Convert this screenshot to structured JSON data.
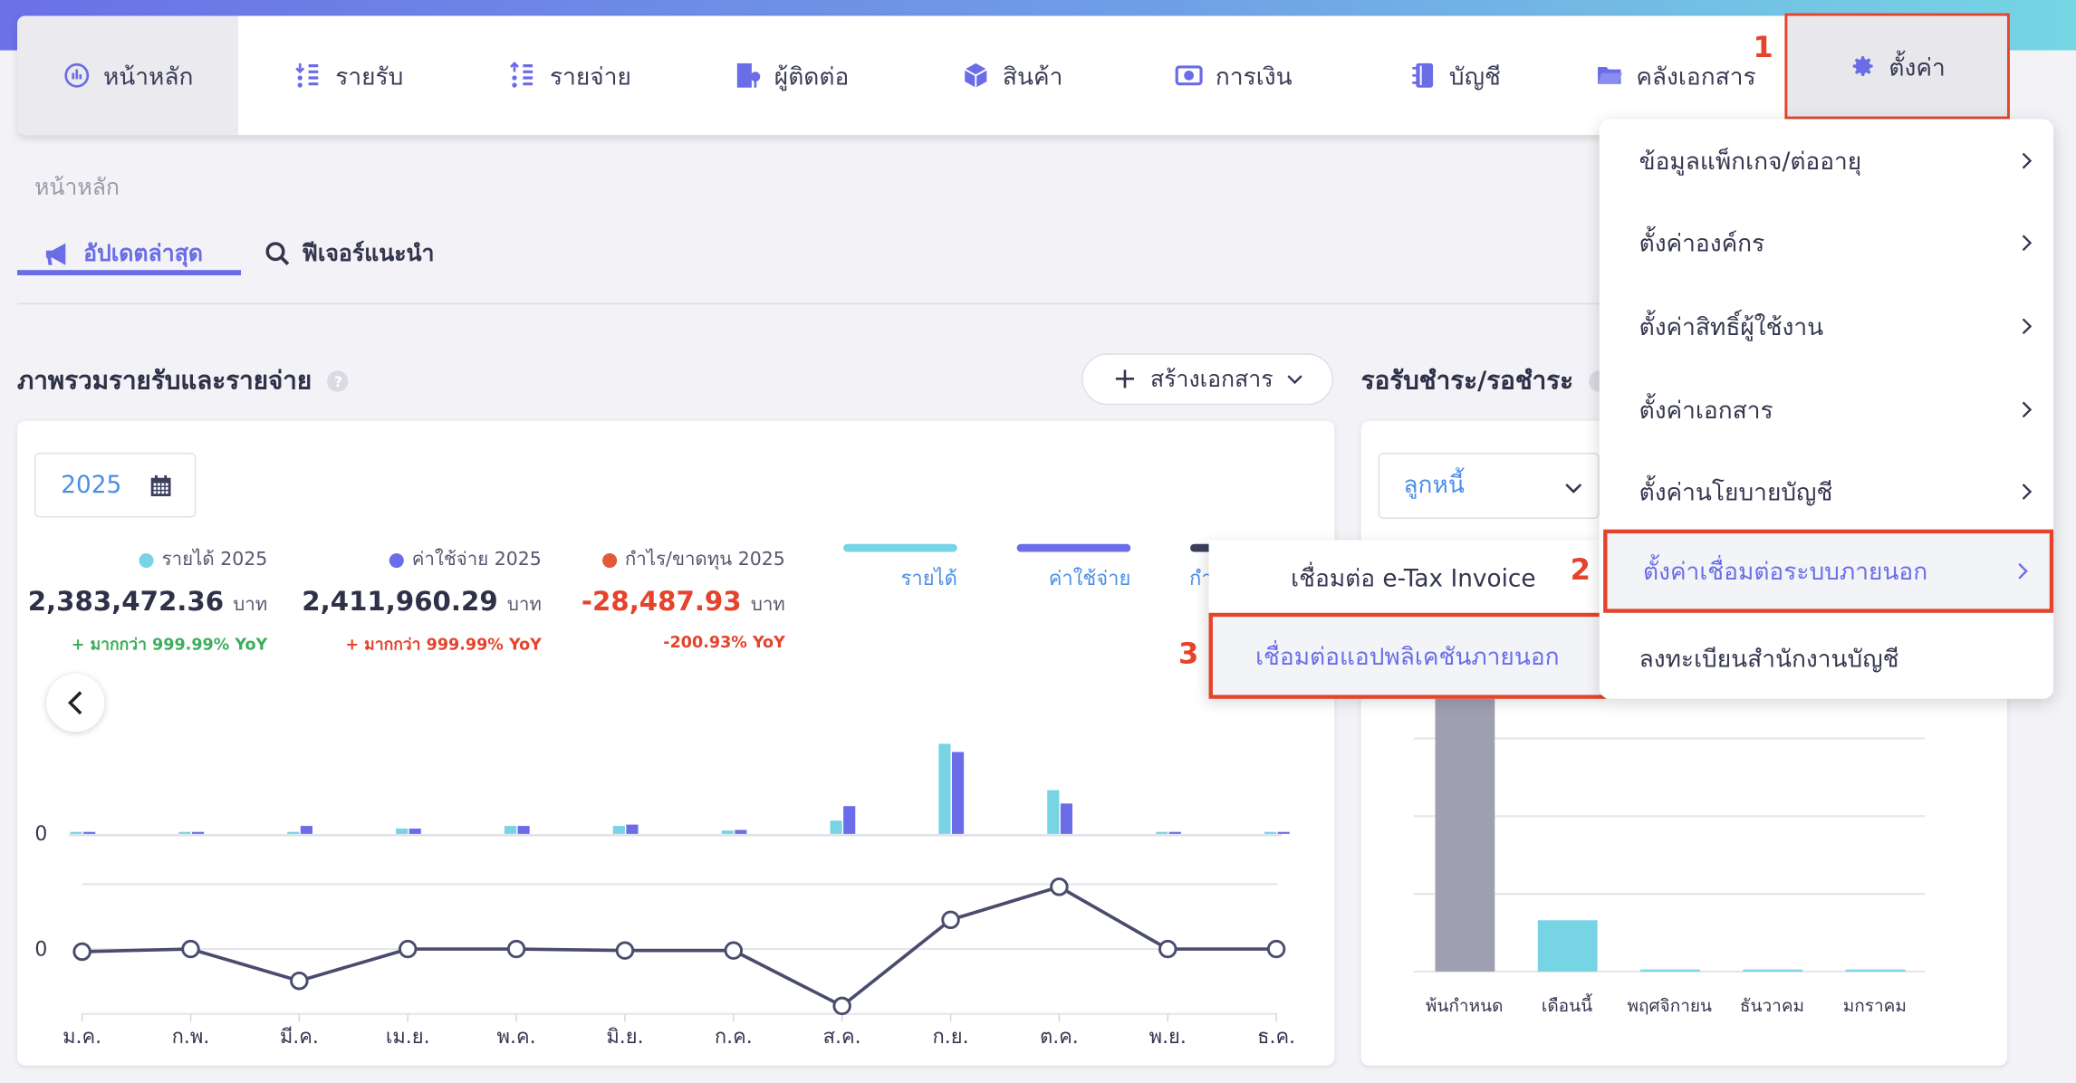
{
  "nav": {
    "items": [
      {
        "label": "หน้าหลัก",
        "icon": "dashboard-icon"
      },
      {
        "label": "รายรับ",
        "icon": "income-list-icon"
      },
      {
        "label": "รายจ่าย",
        "icon": "expense-list-icon"
      },
      {
        "label": "ผู้ติดต่อ",
        "icon": "contacts-icon"
      },
      {
        "label": "สินค้า",
        "icon": "product-box-icon"
      },
      {
        "label": "การเงิน",
        "icon": "money-icon"
      },
      {
        "label": "บัญชี",
        "icon": "ledger-book-icon"
      },
      {
        "label": "คลังเอกสาร",
        "icon": "folder-icon"
      }
    ],
    "settings": {
      "label": "ตั้งค่า",
      "icon": "gear-icon"
    }
  },
  "steps": {
    "one": "1",
    "two": "2",
    "three": "3"
  },
  "breadcrumb": "หน้าหลัก",
  "tabs": [
    {
      "label": "อัปเดตล่าสุด",
      "icon": "megaphone-icon"
    },
    {
      "label": "ฟีเจอร์แนะนำ",
      "icon": "search-icon"
    }
  ],
  "overview": {
    "title": "ภาพรวมรายรับและรายจ่าย",
    "help": "?",
    "create_button": "สร้างเอกสาร",
    "year": "2025",
    "stats": [
      {
        "label": "รายได้ 2025",
        "value": "2,383,472.36",
        "unit": "บาท",
        "yoy": "+ มากกว่า 999.99% YoY",
        "color": "#76d4e4",
        "value_color": "#2f3149",
        "yoy_color": "#3dae5c"
      },
      {
        "label": "ค่าใช้จ่าย 2025",
        "value": "2,411,960.29",
        "unit": "บาท",
        "yoy": "+ มากกว่า 999.99% YoY",
        "color": "#6b6de8",
        "value_color": "#2f3149",
        "yoy_color": "#e5432c"
      },
      {
        "label": "กำไร/ขาดทุน 2025",
        "value": "-28,487.93",
        "unit": "บาท",
        "yoy": "-200.93% YoY",
        "color": "#e25a3a",
        "value_color": "#e5432c",
        "yoy_color": "#e5432c"
      }
    ],
    "legend": [
      {
        "label": "รายได้",
        "color": "#76d4e4"
      },
      {
        "label": "ค่าใช้จ่าย",
        "color": "#6b6de8"
      },
      {
        "label": "กำไร/ขาดทุน",
        "color": "#3c3e5e"
      }
    ]
  },
  "receivables": {
    "title": "รอรับชำระ/รอชำระ",
    "dropdown": "ลูกหนี้"
  },
  "settings_menu": {
    "items": [
      "ข้อมูลแพ็กเกจ/ต่ออายุ",
      "ตั้งค่าองค์กร",
      "ตั้งค่าสิทธิ์ผู้ใช้งาน",
      "ตั้งค่าเอกสาร",
      "ตั้งค่านโยบายบัญชี",
      "ตั้งค่าเชื่อมต่อระบบภายนอก",
      "ลงทะเบียนสำนักงานบัญชี"
    ],
    "highlighted_index": 5,
    "submenu": [
      "เชื่อมต่อ e-Tax Invoice",
      "เชื่อมต่อแอปพลิเคชันภายนอก"
    ],
    "submenu_highlighted_index": 1
  },
  "chart_data": [
    {
      "type": "bar",
      "categories": [
        "ม.ค.",
        "ก.พ.",
        "มี.ค.",
        "เม.ย.",
        "พ.ค.",
        "มิ.ย.",
        "ก.ค.",
        "ส.ค.",
        "ก.ย.",
        "ต.ค.",
        "พ.ย.",
        "ธ.ค."
      ],
      "y_tick_labels": [
        "0"
      ],
      "ylim": [
        0,
        1600000
      ],
      "series": [
        {
          "name": "รายได้",
          "color": "#76d4e4",
          "values": [
            18000,
            18000,
            9000,
            71000,
            107000,
            107000,
            45000,
            178000,
            1210000,
            587000,
            18000,
            18000
          ]
        },
        {
          "name": "ค่าใช้จ่าย",
          "color": "#6b6de8",
          "values": [
            18000,
            18000,
            107000,
            71000,
            107000,
            125000,
            53000,
            373000,
            1100000,
            408000,
            18000,
            18000
          ]
        }
      ]
    },
    {
      "type": "line",
      "categories": [
        "ม.ค.",
        "ก.พ.",
        "มี.ค.",
        "เม.ย.",
        "พ.ค.",
        "มิ.ย.",
        "ก.ค.",
        "ส.ค.",
        "ก.ย.",
        "ต.ค.",
        "พ.ย.",
        "ธ.ค."
      ],
      "y_tick_labels": [
        "0"
      ],
      "ylim": [
        -220000,
        220000
      ],
      "grid": true,
      "series": [
        {
          "name": "กำไร/ขาดทุน",
          "color": "#4a4c6e",
          "values": [
            -9000,
            0,
            -108000,
            0,
            0,
            -5000,
            -5000,
            -193000,
            99000,
            211000,
            0,
            0
          ]
        }
      ]
    },
    {
      "type": "bar",
      "categories": [
        "พ้นกำหนด",
        "เดือนนี้",
        "พฤศจิกายน",
        "ธันวาคม",
        "มกราคม"
      ],
      "ylim": [
        0,
        4
      ],
      "grid": true,
      "colors": [
        "#9e9fb0",
        "#76d4e4",
        "#76d4e4",
        "#76d4e4",
        "#76d4e4"
      ],
      "values": [
        3.6,
        0.66,
        0,
        0,
        0
      ]
    }
  ]
}
